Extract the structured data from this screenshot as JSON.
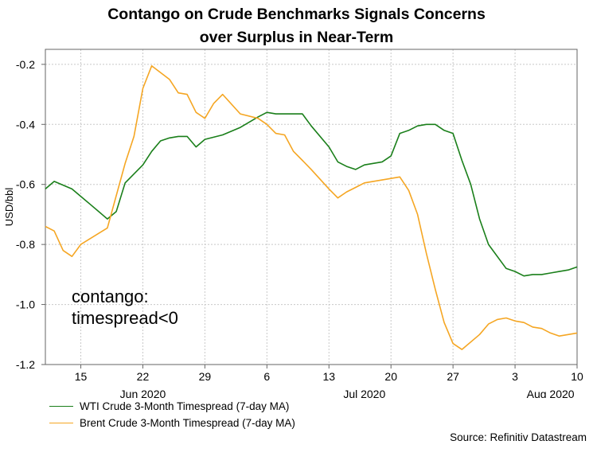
{
  "chart_data": {
    "type": "line",
    "title": [
      "Contango on Crude Benchmarks Signals Concerns",
      "over Surplus in Near-Term"
    ],
    "ylabel": "USD/bbl",
    "ylim": [
      -1.2,
      -0.15
    ],
    "yticks": [
      "-0.2",
      "-0.4",
      "-0.6",
      "-0.8",
      "-1.0",
      "-1.2"
    ],
    "ytick_values": [
      -0.2,
      -0.4,
      -0.6,
      -0.8,
      -1.0,
      -1.2
    ],
    "xlim": [
      "2020-06-11",
      "2020-08-10"
    ],
    "xticks": [
      {
        "date": "2020-06-15",
        "label": "15"
      },
      {
        "date": "2020-06-22",
        "label": "22"
      },
      {
        "date": "2020-06-29",
        "label": "29"
      },
      {
        "date": "2020-07-06",
        "label": "6"
      },
      {
        "date": "2020-07-13",
        "label": "13"
      },
      {
        "date": "2020-07-20",
        "label": "20"
      },
      {
        "date": "2020-07-27",
        "label": "27"
      },
      {
        "date": "2020-08-03",
        "label": "3"
      },
      {
        "date": "2020-08-10",
        "label": "10"
      }
    ],
    "month_labels": [
      {
        "date": "2020-06-22",
        "label": "Jun 2020"
      },
      {
        "date": "2020-07-17",
        "label": "Jul 2020"
      },
      {
        "date": "2020-08-07",
        "label": "Aug 2020"
      }
    ],
    "annotation": [
      "contango:",
      "timespread<0"
    ],
    "grid": true,
    "legend_position": "bottom-left",
    "series": [
      {
        "name": "WTI Crude 3-Month Timespread (7-day MA)",
        "color": "#1a7f1a",
        "x": [
          "2020-06-11",
          "2020-06-12",
          "2020-06-14",
          "2020-06-16",
          "2020-06-18",
          "2020-06-19",
          "2020-06-20",
          "2020-06-22",
          "2020-06-23",
          "2020-06-24",
          "2020-06-25",
          "2020-06-26",
          "2020-06-27",
          "2020-06-28",
          "2020-06-29",
          "2020-07-01",
          "2020-07-03",
          "2020-07-05",
          "2020-07-06",
          "2020-07-07",
          "2020-07-08",
          "2020-07-09",
          "2020-07-10",
          "2020-07-11",
          "2020-07-13",
          "2020-07-14",
          "2020-07-15",
          "2020-07-16",
          "2020-07-17",
          "2020-07-18",
          "2020-07-19",
          "2020-07-20",
          "2020-07-21",
          "2020-07-22",
          "2020-07-23",
          "2020-07-24",
          "2020-07-25",
          "2020-07-26",
          "2020-07-27",
          "2020-07-28",
          "2020-07-29",
          "2020-07-30",
          "2020-07-31",
          "2020-08-02",
          "2020-08-03",
          "2020-08-04",
          "2020-08-05",
          "2020-08-06",
          "2020-08-07",
          "2020-08-08",
          "2020-08-09",
          "2020-08-10"
        ],
        "values": [
          -0.615,
          -0.59,
          -0.615,
          -0.665,
          -0.715,
          -0.69,
          -0.595,
          -0.535,
          -0.49,
          -0.455,
          -0.445,
          -0.44,
          -0.44,
          -0.475,
          -0.45,
          -0.435,
          -0.41,
          -0.375,
          -0.36,
          -0.365,
          -0.365,
          -0.365,
          -0.365,
          -0.405,
          -0.475,
          -0.525,
          -0.54,
          -0.55,
          -0.535,
          -0.53,
          -0.525,
          -0.505,
          -0.43,
          -0.42,
          -0.405,
          -0.4,
          -0.4,
          -0.42,
          -0.43,
          -0.52,
          -0.6,
          -0.715,
          -0.8,
          -0.88,
          -0.89,
          -0.905,
          -0.9,
          -0.9,
          -0.895,
          -0.89,
          -0.885,
          -0.875
        ]
      },
      {
        "name": "Brent Crude 3-Month Timespread (7-day MA)",
        "color": "#f5a623",
        "x": [
          "2020-06-11",
          "2020-06-12",
          "2020-06-13",
          "2020-06-14",
          "2020-06-15",
          "2020-06-18",
          "2020-06-20",
          "2020-06-21",
          "2020-06-22",
          "2020-06-23",
          "2020-06-25",
          "2020-06-26",
          "2020-06-27",
          "2020-06-28",
          "2020-06-29",
          "2020-06-30",
          "2020-07-01",
          "2020-07-03",
          "2020-07-05",
          "2020-07-06",
          "2020-07-07",
          "2020-07-08",
          "2020-07-09",
          "2020-07-10",
          "2020-07-11",
          "2020-07-13",
          "2020-07-14",
          "2020-07-15",
          "2020-07-16",
          "2020-07-17",
          "2020-07-18",
          "2020-07-19",
          "2020-07-20",
          "2020-07-21",
          "2020-07-22",
          "2020-07-23",
          "2020-07-24",
          "2020-07-25",
          "2020-07-26",
          "2020-07-27",
          "2020-07-28",
          "2020-07-30",
          "2020-07-31",
          "2020-08-01",
          "2020-08-02",
          "2020-08-03",
          "2020-08-04",
          "2020-08-05",
          "2020-08-06",
          "2020-08-07",
          "2020-08-08",
          "2020-08-09",
          "2020-08-10"
        ],
        "values": [
          -0.74,
          -0.755,
          -0.82,
          -0.84,
          -0.8,
          -0.745,
          -0.53,
          -0.44,
          -0.28,
          -0.205,
          -0.25,
          -0.295,
          -0.3,
          -0.36,
          -0.38,
          -0.33,
          -0.3,
          -0.365,
          -0.38,
          -0.4,
          -0.43,
          -0.435,
          -0.49,
          -0.52,
          -0.55,
          -0.615,
          -0.645,
          -0.625,
          -0.61,
          -0.595,
          -0.59,
          -0.585,
          -0.58,
          -0.575,
          -0.62,
          -0.7,
          -0.83,
          -0.95,
          -1.06,
          -1.13,
          -1.15,
          -1.1,
          -1.065,
          -1.05,
          -1.045,
          -1.055,
          -1.06,
          -1.075,
          -1.08,
          -1.095,
          -1.105,
          -1.1,
          -1.095
        ]
      }
    ]
  },
  "source": "Source: Refinitiv Datastream"
}
